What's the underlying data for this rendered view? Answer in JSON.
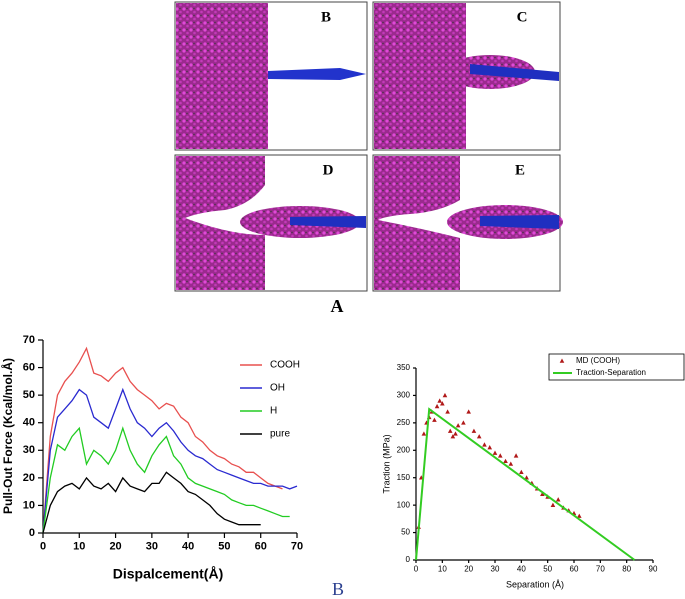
{
  "panels": {
    "labels": [
      "B",
      "C",
      "D",
      "E"
    ],
    "caption_a": "A",
    "caption_b": "B"
  },
  "chart_data": [
    {
      "type": "line",
      "xlabel": "Dispalcement(Å)",
      "ylabel": "Pull-Out Force (Kcal/mol.Å)",
      "xlim": [
        0,
        70
      ],
      "xticks": [
        0,
        10,
        20,
        30,
        40,
        50,
        60,
        70
      ],
      "ylim": [
        0,
        70
      ],
      "yticks": [
        0,
        10,
        20,
        30,
        40,
        50,
        60,
        70
      ],
      "x": [
        0,
        2,
        4,
        6,
        8,
        10,
        12,
        14,
        16,
        18,
        20,
        22,
        24,
        26,
        28,
        30,
        32,
        34,
        36,
        38,
        40,
        42,
        44,
        46,
        48,
        50,
        52,
        54,
        56,
        58,
        60,
        62,
        64,
        66,
        68,
        70
      ],
      "series": [
        {
          "name": "COOH",
          "color": "#e8504f",
          "values": [
            0,
            35,
            50,
            55,
            58,
            62,
            67,
            58,
            57,
            55,
            58,
            60,
            55,
            52,
            50,
            48,
            45,
            47,
            46,
            42,
            40,
            35,
            33,
            30,
            28,
            27,
            25,
            24,
            22,
            22,
            20,
            18,
            17,
            16,
            null,
            null
          ]
        },
        {
          "name": "OH",
          "color": "#2a2ad0",
          "values": [
            0,
            30,
            42,
            45,
            48,
            52,
            50,
            42,
            40,
            38,
            45,
            52,
            45,
            40,
            38,
            35,
            38,
            40,
            37,
            33,
            30,
            28,
            27,
            25,
            23,
            22,
            21,
            20,
            19,
            18,
            18,
            17,
            17,
            17,
            16,
            17
          ]
        },
        {
          "name": "H",
          "color": "#22cc22",
          "values": [
            0,
            20,
            32,
            30,
            35,
            38,
            25,
            30,
            28,
            25,
            30,
            38,
            30,
            25,
            22,
            28,
            32,
            35,
            28,
            25,
            20,
            18,
            17,
            16,
            15,
            14,
            12,
            11,
            10,
            10,
            9,
            8,
            7,
            6,
            6,
            null
          ]
        },
        {
          "name": "pure",
          "color": "#000000",
          "values": [
            0,
            10,
            15,
            17,
            18,
            16,
            20,
            17,
            16,
            18,
            15,
            20,
            17,
            16,
            15,
            18,
            18,
            22,
            20,
            18,
            15,
            14,
            12,
            10,
            7,
            5,
            4,
            3,
            3,
            3,
            3,
            null,
            null,
            null,
            null,
            null
          ]
        }
      ]
    },
    {
      "type": "scatter",
      "xlabel": "Separation (Å)",
      "ylabel": "Traction (MPa)",
      "xlim": [
        0,
        90
      ],
      "xticks": [
        0,
        10,
        20,
        30,
        40,
        50,
        60,
        70,
        80,
        90
      ],
      "ylim": [
        0,
        350
      ],
      "yticks": [
        0,
        50,
        100,
        150,
        200,
        250,
        300,
        350
      ],
      "series": [
        {
          "name": "MD (COOH)",
          "color": "#b01818",
          "style": "marker",
          "x": [
            1,
            2,
            3,
            4,
            5,
            6,
            7,
            8,
            9,
            10,
            11,
            12,
            13,
            14,
            15,
            16,
            18,
            20,
            22,
            24,
            26,
            28,
            30,
            32,
            34,
            36,
            38,
            40,
            42,
            44,
            46,
            48,
            50,
            52,
            54,
            56,
            58,
            60,
            62
          ],
          "values": [
            60,
            150,
            230,
            250,
            260,
            270,
            255,
            280,
            290,
            285,
            300,
            270,
            235,
            225,
            230,
            245,
            250,
            270,
            235,
            225,
            210,
            205,
            195,
            190,
            180,
            175,
            190,
            160,
            150,
            140,
            130,
            120,
            115,
            100,
            110,
            95,
            90,
            85,
            80
          ]
        },
        {
          "name": "Traction-Separation",
          "color": "#33cc22",
          "style": "line",
          "x": [
            0,
            5,
            83
          ],
          "values": [
            0,
            275,
            0
          ]
        }
      ]
    }
  ]
}
